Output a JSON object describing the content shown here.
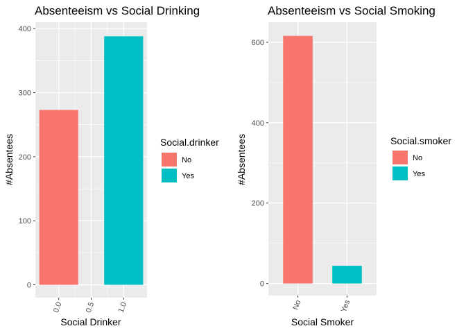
{
  "chart_data": [
    {
      "type": "bar",
      "title": "Absenteeism vs Social Drinking",
      "xlabel": "Social Drinker",
      "ylabel": "#Absentees",
      "x_ticks": [
        "0.0",
        "0.5",
        "1.0"
      ],
      "y_ticks": [
        "0",
        "100",
        "200",
        "300",
        "400"
      ],
      "xlim": [
        -0.36,
        1.36
      ],
      "ylim": [
        -20,
        410
      ],
      "bars": [
        {
          "x": 0,
          "value": 273,
          "color": "#F8766D",
          "legend": "No"
        },
        {
          "x": 1,
          "value": 388,
          "color": "#00BFC4",
          "legend": "Yes"
        }
      ],
      "legend": {
        "title": "Social.drinker",
        "items": [
          {
            "label": "No",
            "color": "#F8766D"
          },
          {
            "label": "Yes",
            "color": "#00BFC4"
          }
        ],
        "position": "right"
      },
      "grid": true
    },
    {
      "type": "bar",
      "title": "Absenteeism vs Social Smoking",
      "xlabel": "Social Smoker",
      "ylabel": "#Absentees",
      "categories": [
        "No",
        "Yes"
      ],
      "y_ticks": [
        "0",
        "200",
        "400",
        "600"
      ],
      "ylim": [
        -30,
        650
      ],
      "bars": [
        {
          "category": "No",
          "value": 616,
          "color": "#F8766D"
        },
        {
          "category": "Yes",
          "value": 44,
          "color": "#00BFC4"
        }
      ],
      "legend": {
        "title": "Social.smoker",
        "items": [
          {
            "label": "No",
            "color": "#F8766D"
          },
          {
            "label": "Yes",
            "color": "#00BFC4"
          }
        ],
        "position": "right"
      },
      "grid": true
    }
  ]
}
